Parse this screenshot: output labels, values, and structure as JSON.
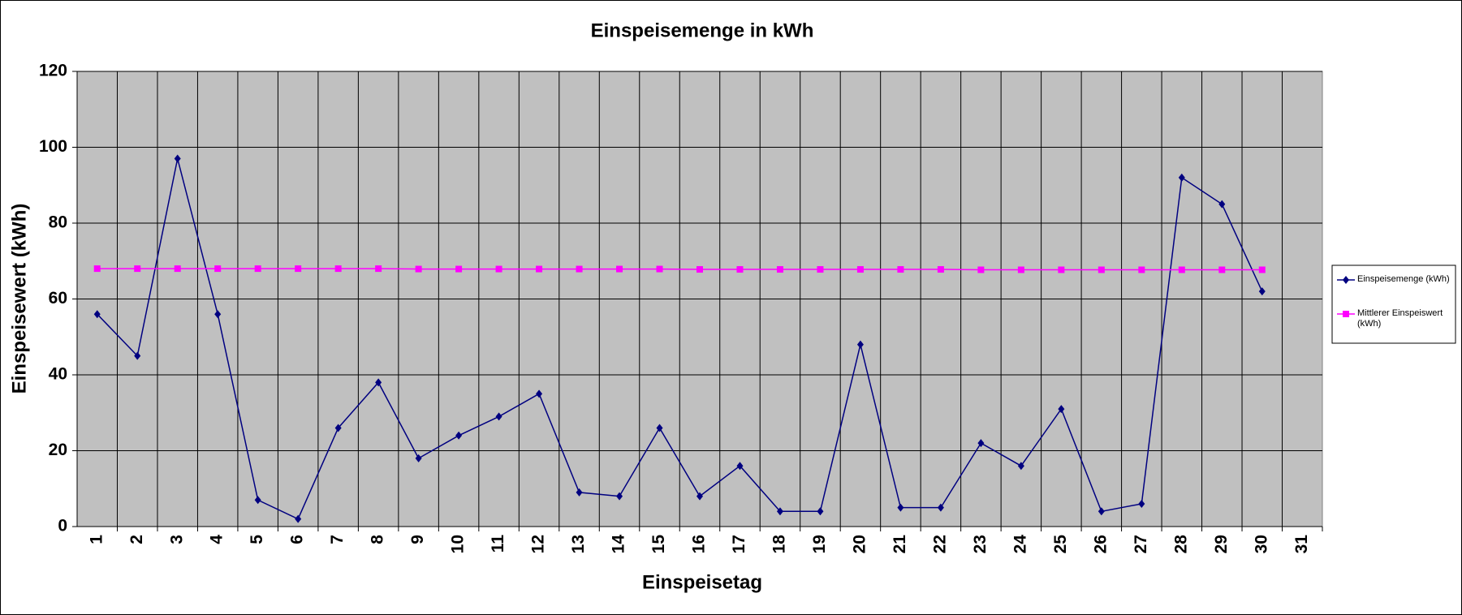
{
  "chart_data": {
    "type": "line",
    "title": "Einspeisemenge in kWh",
    "x_label": "Einspeisetag",
    "y_label": "Einspeisewert  (kWh)",
    "categories": [
      "1",
      "2",
      "3",
      "4",
      "5",
      "6",
      "7",
      "8",
      "9",
      "10",
      "11",
      "12",
      "13",
      "14",
      "15",
      "16",
      "17",
      "18",
      "19",
      "20",
      "21",
      "22",
      "23",
      "24",
      "25",
      "26",
      "27",
      "28",
      "29",
      "30",
      "31"
    ],
    "series": [
      {
        "name": "Einspeisemenge (kWh)",
        "color": "#000080",
        "marker": "diamond",
        "values": [
          56,
          45,
          97,
          56,
          7,
          2,
          26,
          38,
          18,
          24,
          29,
          35,
          9,
          8,
          26,
          8,
          16,
          4,
          4,
          48,
          5,
          5,
          22,
          16,
          31,
          4,
          6,
          92,
          85,
          62,
          null
        ]
      },
      {
        "name": "Mittlerer Einspeiswert (kWh)",
        "color": "#ff00ff",
        "marker": "square",
        "values": [
          68,
          68,
          68,
          68,
          68,
          68,
          68,
          68,
          67.9,
          67.9,
          67.9,
          67.9,
          67.9,
          67.9,
          67.9,
          67.8,
          67.8,
          67.8,
          67.8,
          67.8,
          67.8,
          67.8,
          67.7,
          67.7,
          67.7,
          67.7,
          67.7,
          67.7,
          67.7,
          67.7,
          null
        ]
      }
    ],
    "ylim": [
      0,
      120
    ],
    "yticks": [
      0,
      20,
      40,
      60,
      80,
      100,
      120
    ],
    "grid": true,
    "legend": "right",
    "plot_background": "#c0c0c0"
  }
}
